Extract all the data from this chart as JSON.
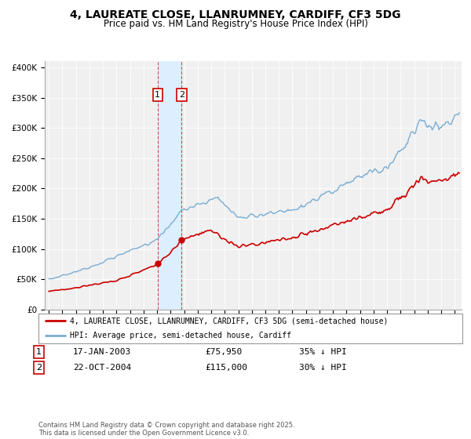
{
  "title": "4, LAUREATE CLOSE, LLANRUMNEY, CARDIFF, CF3 5DG",
  "subtitle": "Price paid vs. HM Land Registry's House Price Index (HPI)",
  "legend_line1": "4, LAUREATE CLOSE, LLANRUMNEY, CARDIFF, CF3 5DG (semi-detached house)",
  "legend_line2": "HPI: Average price, semi-detached house, Cardiff",
  "annotation1_date": "17-JAN-2003",
  "annotation1_price": "£75,950",
  "annotation1_hpi": "35% ↓ HPI",
  "annotation2_date": "22-OCT-2004",
  "annotation2_price": "£115,000",
  "annotation2_hpi": "30% ↓ HPI",
  "footer": "Contains HM Land Registry data © Crown copyright and database right 2025.\nThis data is licensed under the Open Government Licence v3.0.",
  "sale1_date_num": 2003.04,
  "sale1_price": 75950,
  "sale2_date_num": 2004.81,
  "sale2_price": 115000,
  "hpi_color": "#7aadd4",
  "price_color": "#cc0000",
  "shade_color": "#ddeeff",
  "chart_bg": "#f0f0f0",
  "ylim_max": 410000,
  "ylim_min": 0,
  "xlim_min": 1994.7,
  "xlim_max": 2025.5
}
